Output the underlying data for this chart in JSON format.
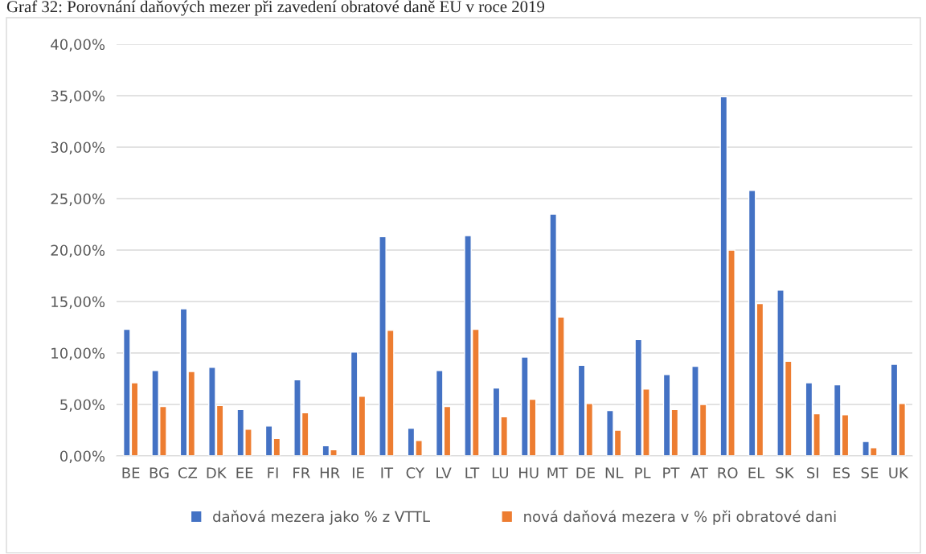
{
  "chart_data": {
    "type": "bar",
    "title": "Graf 32: Porovnání daňových mezer při zavedení obratové daně EU v roce 2019",
    "categories": [
      "BE",
      "BG",
      "CZ",
      "DK",
      "EE",
      "FI",
      "FR",
      "HR",
      "IE",
      "IT",
      "CY",
      "LV",
      "LT",
      "LU",
      "HU",
      "MT",
      "DE",
      "NL",
      "PL",
      "PT",
      "AT",
      "RO",
      "EL",
      "SK",
      "SI",
      "ES",
      "SE",
      "UK"
    ],
    "series": [
      {
        "name": "daňová mezera jako % z VTTL",
        "color": "#4472c4",
        "values": [
          12.3,
          8.3,
          14.3,
          8.6,
          4.5,
          2.9,
          7.4,
          1.0,
          10.1,
          21.3,
          2.7,
          8.3,
          21.4,
          6.6,
          9.6,
          23.5,
          8.8,
          4.4,
          11.3,
          7.9,
          8.7,
          34.9,
          25.8,
          16.1,
          7.1,
          6.9,
          1.4,
          8.9
        ]
      },
      {
        "name": "nová daňová mezera v % při obratové dani",
        "color": "#ed7d31",
        "values": [
          7.1,
          4.8,
          8.2,
          4.9,
          2.6,
          1.7,
          4.2,
          0.6,
          5.8,
          12.2,
          1.5,
          4.8,
          12.3,
          3.8,
          5.5,
          13.5,
          5.1,
          2.5,
          6.5,
          4.5,
          5.0,
          20.0,
          14.8,
          9.2,
          4.1,
          4.0,
          0.8,
          5.1
        ]
      }
    ],
    "ylim": [
      0,
      40
    ],
    "yticks": [
      {
        "value": 0,
        "label": "0,00%"
      },
      {
        "value": 5,
        "label": "5,00%"
      },
      {
        "value": 10,
        "label": "10,00%"
      },
      {
        "value": 15,
        "label": "15,00%"
      },
      {
        "value": 20,
        "label": "20,00%"
      },
      {
        "value": 25,
        "label": "25,00%"
      },
      {
        "value": 30,
        "label": "30,00%"
      },
      {
        "value": 35,
        "label": "35,00%"
      },
      {
        "value": 40,
        "label": "40,00%"
      }
    ],
    "grid": "y",
    "legend": "bottom"
  }
}
